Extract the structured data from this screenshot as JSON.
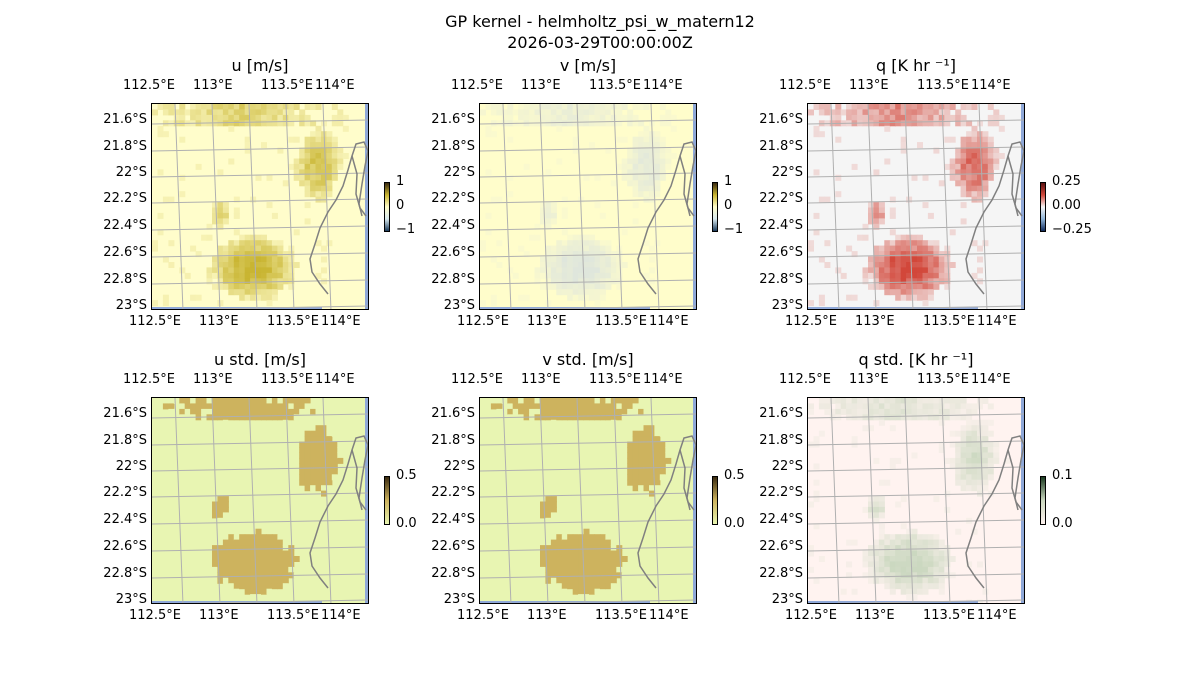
{
  "figure": {
    "title_line1": "GP kernel - helmholtz_psi_w_matern12",
    "title_line2": "2026-03-29T00:00:00Z"
  },
  "axes": {
    "lon_ticks": [
      "112.5°E",
      "113°E",
      "113.5°E",
      "114°E"
    ],
    "lat_ticks": [
      "21.6°S",
      "21.8°S",
      "22°S",
      "22.2°S",
      "22.4°S",
      "22.6°S",
      "22.8°S",
      "23°S"
    ]
  },
  "chart_data": [
    {
      "type": "heatmap",
      "title": "u [m/s]",
      "colorbar_ticks": [
        "1",
        "0",
        "−1"
      ],
      "value_range": [
        -1,
        1
      ],
      "colors": {
        "background": "#fffdcb",
        "high": "#c9b532",
        "ocean_edge": "#8fa8d8"
      }
    },
    {
      "type": "heatmap",
      "title": "v [m/s]",
      "colorbar_ticks": [
        "1",
        "0",
        "−1"
      ],
      "value_range": [
        -1,
        1
      ],
      "colors": {
        "background": "#fffdcb",
        "high": "#dfe6dc",
        "ocean_edge": "#8fa8d8"
      }
    },
    {
      "type": "heatmap",
      "title": "q [K hr ⁻¹]",
      "colorbar_ticks": [
        "0.25",
        "0.00",
        "−0.25"
      ],
      "value_range": [
        -0.25,
        0.25
      ],
      "colors": {
        "background": "#f5f5f5",
        "high": "#d2473a",
        "ocean_edge": "#8fa8d8"
      }
    },
    {
      "type": "heatmap",
      "title": "u std. [m/s]",
      "colorbar_ticks": [
        "0.5",
        "0.0"
      ],
      "value_range": [
        0,
        0.5
      ],
      "colors": {
        "background": "#e8f5b2",
        "high": "#cdb35e",
        "ocean_edge": "#8fa8d8"
      }
    },
    {
      "type": "heatmap",
      "title": "v std. [m/s]",
      "colorbar_ticks": [
        "0.5",
        "0.0"
      ],
      "value_range": [
        0,
        0.5
      ],
      "colors": {
        "background": "#e8f5b2",
        "high": "#cdb35e",
        "ocean_edge": "#8fa8d8"
      }
    },
    {
      "type": "heatmap",
      "title": "q std. [K hr ⁻¹]",
      "colorbar_ticks": [
        "0.1",
        "0.0"
      ],
      "value_range": [
        0,
        0.1
      ],
      "colors": {
        "background": "#fff3f0",
        "high": "#cbd8c0",
        "ocean_edge": "#8fa8d8"
      }
    }
  ]
}
